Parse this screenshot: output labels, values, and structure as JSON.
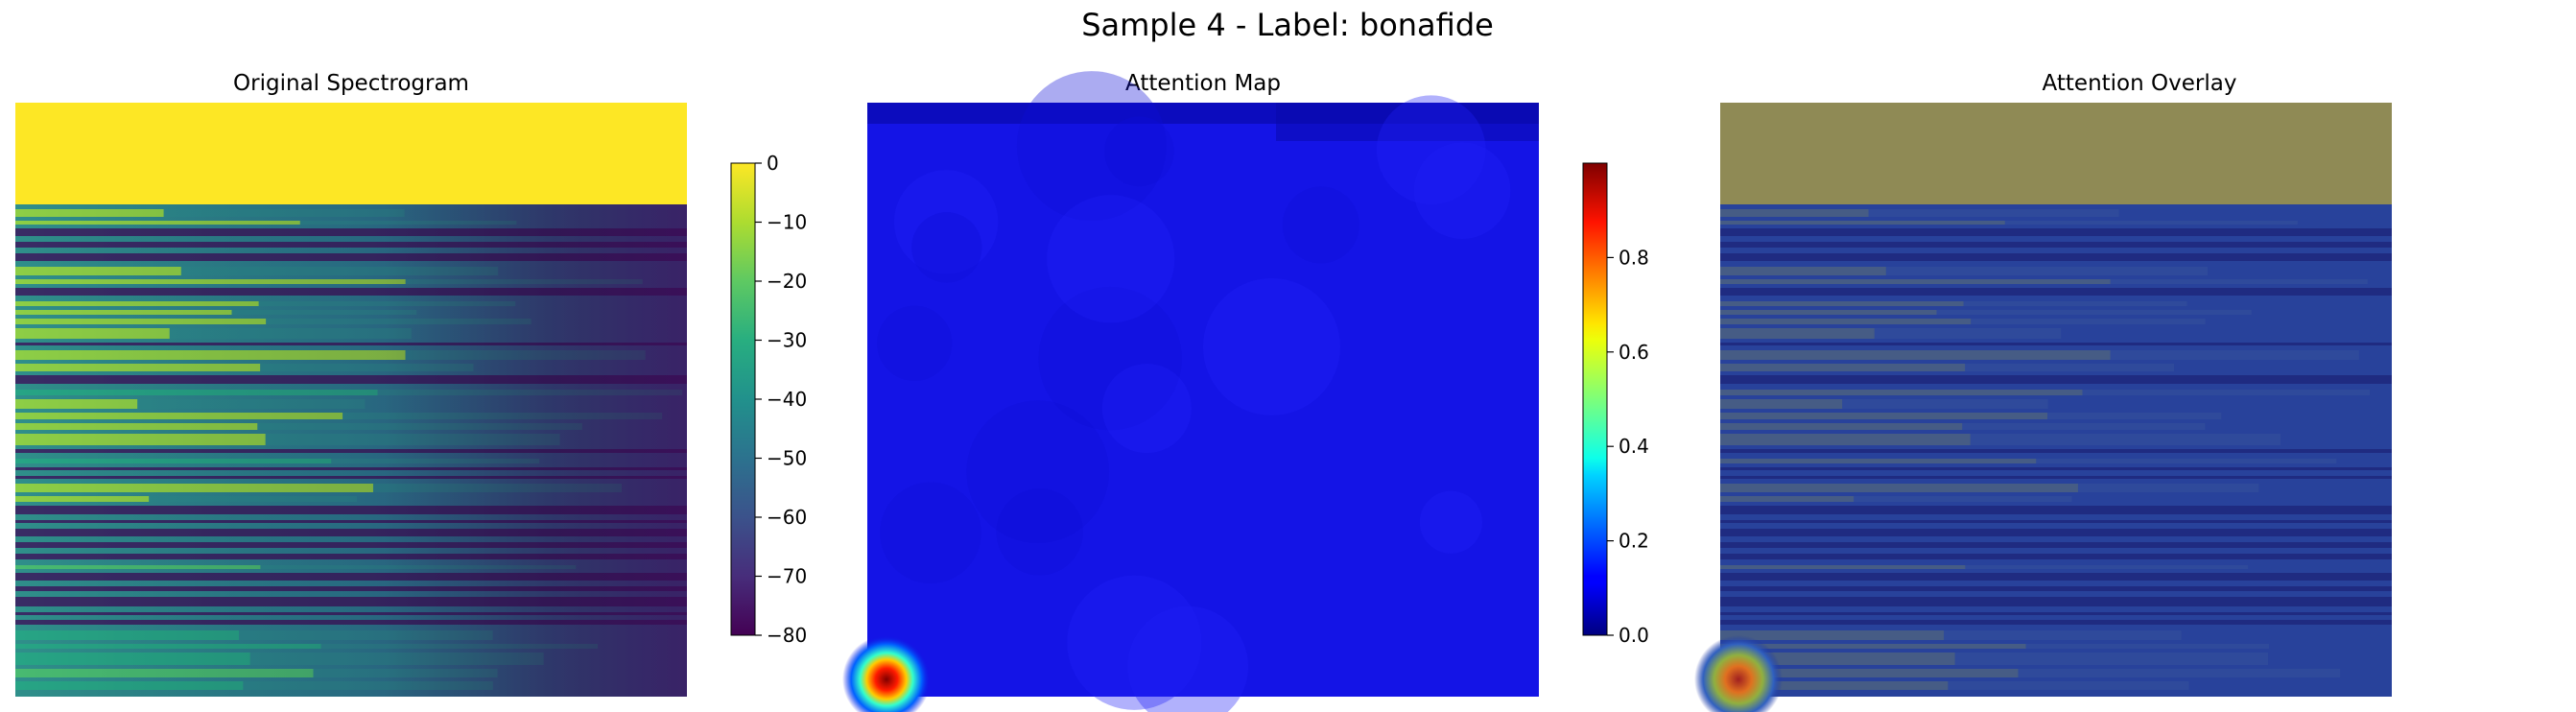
{
  "figure": {
    "suptitle": "Sample 4 - Label: bonafide"
  },
  "panels": {
    "spectrogram": {
      "title": "Original Spectrogram"
    },
    "attention": {
      "title": "Attention Map"
    },
    "overlay": {
      "title": "Attention Overlay"
    }
  },
  "chart_data": [
    {
      "type": "heatmap",
      "title": "Original Spectrogram",
      "xlabel": "",
      "ylabel": "",
      "axes": "off",
      "colormap": "viridis",
      "colorbar": {
        "range": [
          -80,
          0
        ],
        "ticks": [
          0,
          -10,
          -20,
          -30,
          -40,
          -50,
          -60,
          -70,
          -80
        ],
        "tick_labels": [
          "0",
          "−10",
          "−20",
          "−30",
          "−40",
          "−50",
          "−60",
          "−70",
          "−80"
        ]
      },
      "regions": {
        "top_band_value": 0,
        "top_band_fraction": 0.17
      }
    },
    {
      "type": "heatmap",
      "title": "Attention Map",
      "xlabel": "",
      "ylabel": "",
      "axes": "off",
      "colormap": "jet",
      "colorbar": {
        "range": [
          0,
          1
        ],
        "ticks": [
          0.0,
          0.2,
          0.4,
          0.6,
          0.8
        ],
        "tick_labels": [
          "0.0",
          "0.2",
          "0.4",
          "0.6",
          "0.8"
        ]
      },
      "baseline_value": 0.14,
      "hotspot": {
        "location": "bottom-left",
        "peak_value": 1.0
      }
    },
    {
      "type": "heatmap",
      "title": "Attention Overlay",
      "xlabel": "",
      "ylabel": "",
      "axes": "off",
      "composition": "Original Spectrogram blended with Attention Map (jet)"
    }
  ]
}
